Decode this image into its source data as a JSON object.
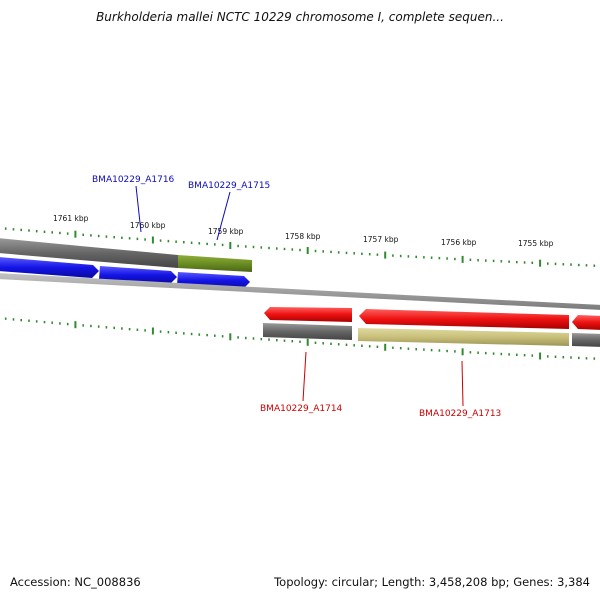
{
  "title": "Burkholderia mallei NCTC 10229 chromosome I, complete sequen...",
  "footer": {
    "accession": "Accession: NC_008836",
    "stats": "Topology: circular; Length: 3,458,208 bp; Genes: 3,384"
  },
  "ticks": [
    "1761 kbp",
    "1760 kbp",
    "1759 kbp",
    "1758 kbp",
    "1757 kbp",
    "1756 kbp",
    "1755 kbp"
  ],
  "genes": [
    {
      "name": "BMA10229_A1716",
      "strand": "forward",
      "color": "#0b0bbd"
    },
    {
      "name": "BMA10229_A1715",
      "strand": "forward",
      "color": "#0b0bbd"
    },
    {
      "name": "BMA10229_A1714",
      "strand": "reverse",
      "color": "#cc0000"
    },
    {
      "name": "BMA10229_A1713",
      "strand": "reverse",
      "color": "#cc0000"
    }
  ],
  "colors": {
    "forward_cds": "#1010e8",
    "reverse_cds": "#e81010",
    "gene_track": "#6e6e6e",
    "highlight_forward": "#6b8e23",
    "highlight_reverse": "#c8c07a",
    "gc_ticks": "#2e8b2e",
    "backbone": "#8c8c8c"
  }
}
